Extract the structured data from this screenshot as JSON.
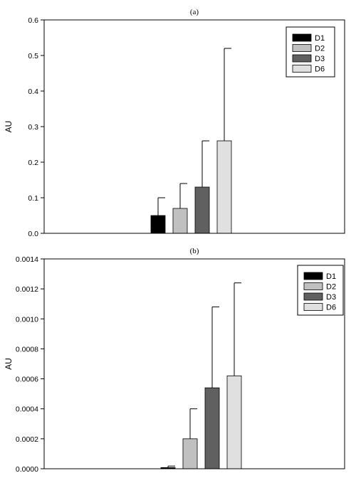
{
  "colors": {
    "D1": "#000000",
    "D2": "#c0c0c0",
    "D3": "#606060",
    "D6": "#e0e0e0",
    "axis": "#000000"
  },
  "chart_data": [
    {
      "type": "bar",
      "title": "(a)",
      "ylabel": "AU",
      "xlabel": "",
      "ylim": [
        0,
        0.6
      ],
      "yticks": [
        "0.0",
        "0.1",
        "0.2",
        "0.3",
        "0.4",
        "0.5",
        "0.6"
      ],
      "legend_position": "top-right",
      "grid": false,
      "series": [
        {
          "name": "D1",
          "value": 0.05,
          "error": 0.05
        },
        {
          "name": "D2",
          "value": 0.07,
          "error": 0.07
        },
        {
          "name": "D3",
          "value": 0.13,
          "error": 0.13
        },
        {
          "name": "D6",
          "value": 0.26,
          "error": 0.26
        }
      ]
    },
    {
      "type": "bar",
      "title": "(b)",
      "ylabel": "AU",
      "xlabel": "",
      "ylim": [
        0,
        0.0014
      ],
      "yticks": [
        "0.0000",
        "0.0002",
        "0.0004",
        "0.0006",
        "0.0008",
        "0.0010",
        "0.0012",
        "0.0014"
      ],
      "legend_position": "top-right",
      "grid": false,
      "series": [
        {
          "name": "D1",
          "value": 8e-06,
          "error": 1e-05
        },
        {
          "name": "D2",
          "value": 0.0002,
          "error": 0.0002
        },
        {
          "name": "D3",
          "value": 0.00054,
          "error": 0.00054
        },
        {
          "name": "D6",
          "value": 0.00062,
          "error": 0.00062
        }
      ]
    }
  ]
}
